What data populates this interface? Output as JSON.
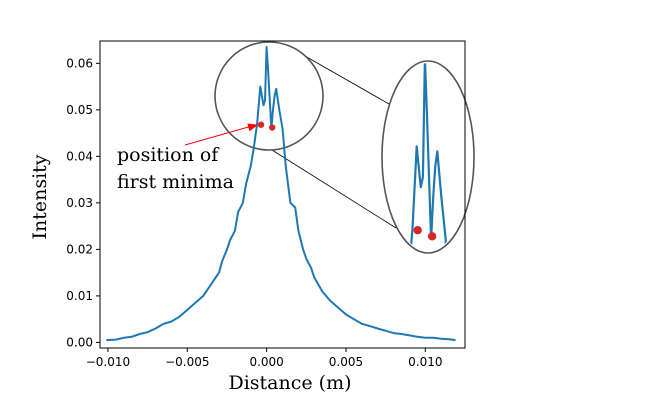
{
  "chart_data": {
    "type": "line",
    "xlabel": "Distance (m)",
    "ylabel": "Intensity",
    "xlim": [
      -0.0105,
      0.0125
    ],
    "ylim": [
      -0.0012,
      0.0648
    ],
    "xticks": [
      -0.01,
      -0.005,
      0.0,
      0.005,
      0.01
    ],
    "xtick_labels": [
      "−0.010",
      "−0.005",
      "0.000",
      "0.005",
      "0.010"
    ],
    "yticks": [
      0.0,
      0.01,
      0.02,
      0.03,
      0.04,
      0.05,
      0.06
    ],
    "ytick_labels": [
      "0.00",
      "0.01",
      "0.02",
      "0.03",
      "0.04",
      "0.05",
      "0.06"
    ],
    "grid": false,
    "series": [
      {
        "color": "#1f77b4",
        "x": [
          -0.0101,
          -0.0095,
          -0.009,
          -0.0085,
          -0.008,
          -0.0075,
          -0.007,
          -0.0065,
          -0.006,
          -0.0055,
          -0.005,
          -0.0045,
          -0.004,
          -0.0035,
          -0.003,
          -0.0028,
          -0.0025,
          -0.0023,
          -0.002,
          -0.0018,
          -0.0015,
          -0.0013,
          -0.001,
          -0.0008,
          -0.0006,
          -0.0004,
          -0.0003,
          -0.0002,
          -0.0001,
          0.0,
          0.0001,
          0.0002,
          0.0003,
          0.0004,
          0.0005,
          0.0006,
          0.0008,
          0.001,
          0.0012,
          0.0015,
          0.0018,
          0.002,
          0.0023,
          0.0025,
          0.0028,
          0.003,
          0.0035,
          0.004,
          0.0045,
          0.005,
          0.0055,
          0.006,
          0.0065,
          0.007,
          0.0075,
          0.008,
          0.0085,
          0.009,
          0.0095,
          0.01,
          0.0105,
          0.011,
          0.0115,
          0.0119
        ],
        "y": [
          0.0005,
          0.0006,
          0.001,
          0.0012,
          0.0018,
          0.0022,
          0.003,
          0.004,
          0.0045,
          0.0055,
          0.007,
          0.0085,
          0.01,
          0.0125,
          0.015,
          0.0175,
          0.02,
          0.022,
          0.024,
          0.028,
          0.03,
          0.034,
          0.038,
          0.042,
          0.047,
          0.055,
          0.053,
          0.051,
          0.052,
          0.0635,
          0.058,
          0.052,
          0.046,
          0.05,
          0.053,
          0.0545,
          0.05,
          0.046,
          0.038,
          0.03,
          0.029,
          0.024,
          0.02,
          0.018,
          0.016,
          0.014,
          0.011,
          0.009,
          0.0075,
          0.006,
          0.005,
          0.004,
          0.0035,
          0.003,
          0.0025,
          0.002,
          0.0018,
          0.0015,
          0.0012,
          0.001,
          0.001,
          0.0008,
          0.0007,
          0.0005
        ]
      }
    ],
    "markers": [
      {
        "color": "#d62728",
        "x": -0.00035,
        "y": 0.0468
      },
      {
        "color": "#d62728",
        "x": 0.00035,
        "y": 0.0462
      }
    ],
    "annotation": {
      "lines": [
        "position of",
        "first minima"
      ],
      "arrow_color": "#ff0000"
    },
    "inset": {
      "shape": "ellipse",
      "outline_color": "#555555"
    }
  }
}
